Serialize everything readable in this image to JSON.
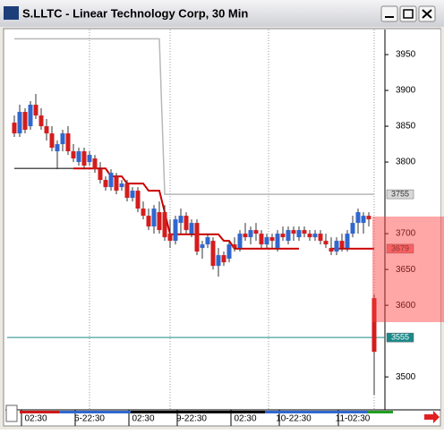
{
  "window": {
    "title": "S.LLTC - Linear Technology Corp, 30 Min"
  },
  "chart_data": {
    "type": "candlestick",
    "categories": [
      null,
      null,
      null,
      null,
      "02:30",
      null,
      null,
      null,
      null,
      null,
      null,
      null,
      null,
      null,
      "6-22:30",
      null,
      null,
      null,
      null,
      null,
      null,
      null,
      null,
      null,
      "02:30",
      null,
      null,
      null,
      null,
      null,
      null,
      null,
      null,
      "9-22:30",
      null,
      null,
      null,
      null,
      null,
      null,
      null,
      null,
      null,
      "02:30",
      null,
      null,
      null,
      null,
      null,
      null,
      null,
      null,
      "10-22:30",
      null,
      null,
      null,
      null,
      null,
      null,
      null,
      null,
      null,
      null,
      "11-02:30",
      null,
      null,
      null,
      null
    ],
    "open": [
      3855,
      3840,
      3870,
      3850,
      3880,
      3865,
      3850,
      3840,
      3815,
      3825,
      3840,
      3815,
      3800,
      3815,
      3800,
      3805,
      3790,
      3775,
      3765,
      3780,
      3765,
      3770,
      3750,
      3760,
      3735,
      3725,
      3710,
      3730,
      3730,
      3700,
      3690,
      3715,
      3725,
      3700,
      3715,
      3680,
      3685,
      3690,
      3655,
      3670,
      3665,
      3685,
      3680,
      3700,
      3695,
      3705,
      3700,
      3685,
      3695,
      3680,
      3700,
      3690,
      3705,
      3695,
      3705,
      3700,
      3695,
      3700,
      3690,
      3680,
      3675,
      3690,
      3680,
      3700,
      3715,
      3715,
      3725,
      3610
    ],
    "high": [
      3865,
      3880,
      3875,
      3885,
      3895,
      3875,
      3860,
      3850,
      3830,
      3845,
      3850,
      3825,
      3820,
      3820,
      3815,
      3810,
      3800,
      3780,
      3790,
      3785,
      3775,
      3775,
      3765,
      3765,
      3745,
      3735,
      3740,
      3745,
      3740,
      3720,
      3725,
      3735,
      3730,
      3720,
      3720,
      3690,
      3700,
      3695,
      3680,
      3675,
      3690,
      3695,
      3705,
      3715,
      3710,
      3715,
      3705,
      3700,
      3700,
      3705,
      3710,
      3710,
      3710,
      3710,
      3710,
      3705,
      3705,
      3705,
      3700,
      3695,
      3695,
      3700,
      3705,
      3725,
      3735,
      3730,
      3730,
      3615
    ],
    "low": [
      3835,
      3835,
      3840,
      3845,
      3860,
      3845,
      3830,
      3815,
      3790,
      3815,
      3810,
      3800,
      3795,
      3790,
      3795,
      3785,
      3770,
      3760,
      3760,
      3755,
      3760,
      3745,
      3745,
      3730,
      3720,
      3705,
      3700,
      3700,
      3690,
      3680,
      3685,
      3700,
      3700,
      3695,
      3670,
      3665,
      3680,
      3650,
      3640,
      3655,
      3660,
      3675,
      3675,
      3690,
      3685,
      3690,
      3680,
      3680,
      3680,
      3675,
      3690,
      3685,
      3690,
      3690,
      3695,
      3690,
      3690,
      3685,
      3680,
      3670,
      3670,
      3675,
      3675,
      3695,
      3700,
      3700,
      3710,
      3475
    ],
    "close": [
      3840,
      3870,
      3845,
      3880,
      3865,
      3850,
      3840,
      3820,
      3825,
      3840,
      3815,
      3805,
      3815,
      3795,
      3810,
      3790,
      3775,
      3765,
      3785,
      3760,
      3770,
      3750,
      3760,
      3735,
      3725,
      3710,
      3735,
      3705,
      3695,
      3690,
      3720,
      3725,
      3705,
      3715,
      3675,
      3685,
      3695,
      3655,
      3670,
      3660,
      3685,
      3680,
      3700,
      3695,
      3705,
      3700,
      3685,
      3695,
      3690,
      3700,
      3695,
      3705,
      3700,
      3705,
      3700,
      3695,
      3700,
      3690,
      3685,
      3675,
      3690,
      3680,
      3700,
      3715,
      3730,
      3725,
      3720,
      3535
    ],
    "up_color": "#2f67cf",
    "down_color": "#d41c1c",
    "series": [
      {
        "color": "#b8b8b8",
        "values": [
          3972,
          3972,
          3972,
          3972,
          3972,
          3972,
          3972,
          3972,
          3972,
          3972,
          3972,
          3972,
          3972,
          3972,
          3972,
          3972,
          3972,
          3972,
          3972,
          3972,
          3972,
          3972,
          3972,
          3972,
          3972,
          3972,
          3972,
          3972,
          3755,
          3755,
          3755,
          3755,
          3755,
          3755,
          3755,
          3755,
          3755,
          3755,
          3755,
          3755,
          3755,
          3755,
          3755,
          3755,
          3755,
          3755,
          3755,
          3755,
          3755,
          3755,
          3755,
          3755,
          3755,
          3755,
          3755,
          3755,
          3755,
          3755,
          3755,
          3755,
          3755,
          3755,
          3755,
          3755,
          3755,
          3755,
          3755,
          3755
        ]
      },
      {
        "color": "#555555",
        "values": [
          3791,
          3791,
          3791,
          3791,
          3791,
          3791,
          3791,
          3791,
          3791,
          3791,
          3791,
          3791,
          null,
          null,
          null,
          null,
          null,
          null,
          null,
          null,
          null,
          null,
          null,
          null,
          null,
          null,
          null,
          null,
          null,
          null,
          null,
          null,
          null,
          null,
          null,
          null,
          null,
          null,
          null,
          null,
          null,
          null,
          null,
          null,
          null,
          null,
          null,
          null,
          null,
          null,
          null,
          null,
          null,
          null,
          null,
          null,
          null,
          null,
          null,
          null,
          null,
          null,
          null,
          null,
          null,
          null,
          null,
          null
        ]
      },
      {
        "color": "#cc0000",
        "values": [
          null,
          null,
          null,
          null,
          null,
          null,
          null,
          null,
          null,
          null,
          null,
          3791,
          3791,
          3791,
          3791,
          3791,
          3791,
          3791,
          3780,
          3780,
          3780,
          3770,
          3770,
          3770,
          3770,
          3760,
          3760,
          3760,
          3730,
          3699,
          3699,
          3699,
          3699,
          3699,
          3699,
          3699,
          3699,
          3699,
          3699,
          3690,
          3690,
          3679,
          3679,
          3679,
          3679,
          3679,
          3679,
          3679,
          3679,
          3679,
          3679,
          3679,
          3679,
          3679,
          null,
          null,
          null,
          null,
          null,
          3679,
          3679,
          3679,
          3679,
          3679,
          3679,
          3679,
          3679,
          3679
        ]
      }
    ],
    "markers": [
      {
        "value": 3755,
        "color": "#d8d8d8",
        "full_line": false
      },
      {
        "value": 3679,
        "color": "#f08080",
        "full_line": false
      },
      {
        "value": 3555,
        "color": "#1a8a8a",
        "full_line": true
      }
    ],
    "ylim": [
      3454,
      3985
    ],
    "yticks": [
      3500,
      3600,
      3650,
      3700,
      3800,
      3850,
      3900,
      3950
    ]
  }
}
